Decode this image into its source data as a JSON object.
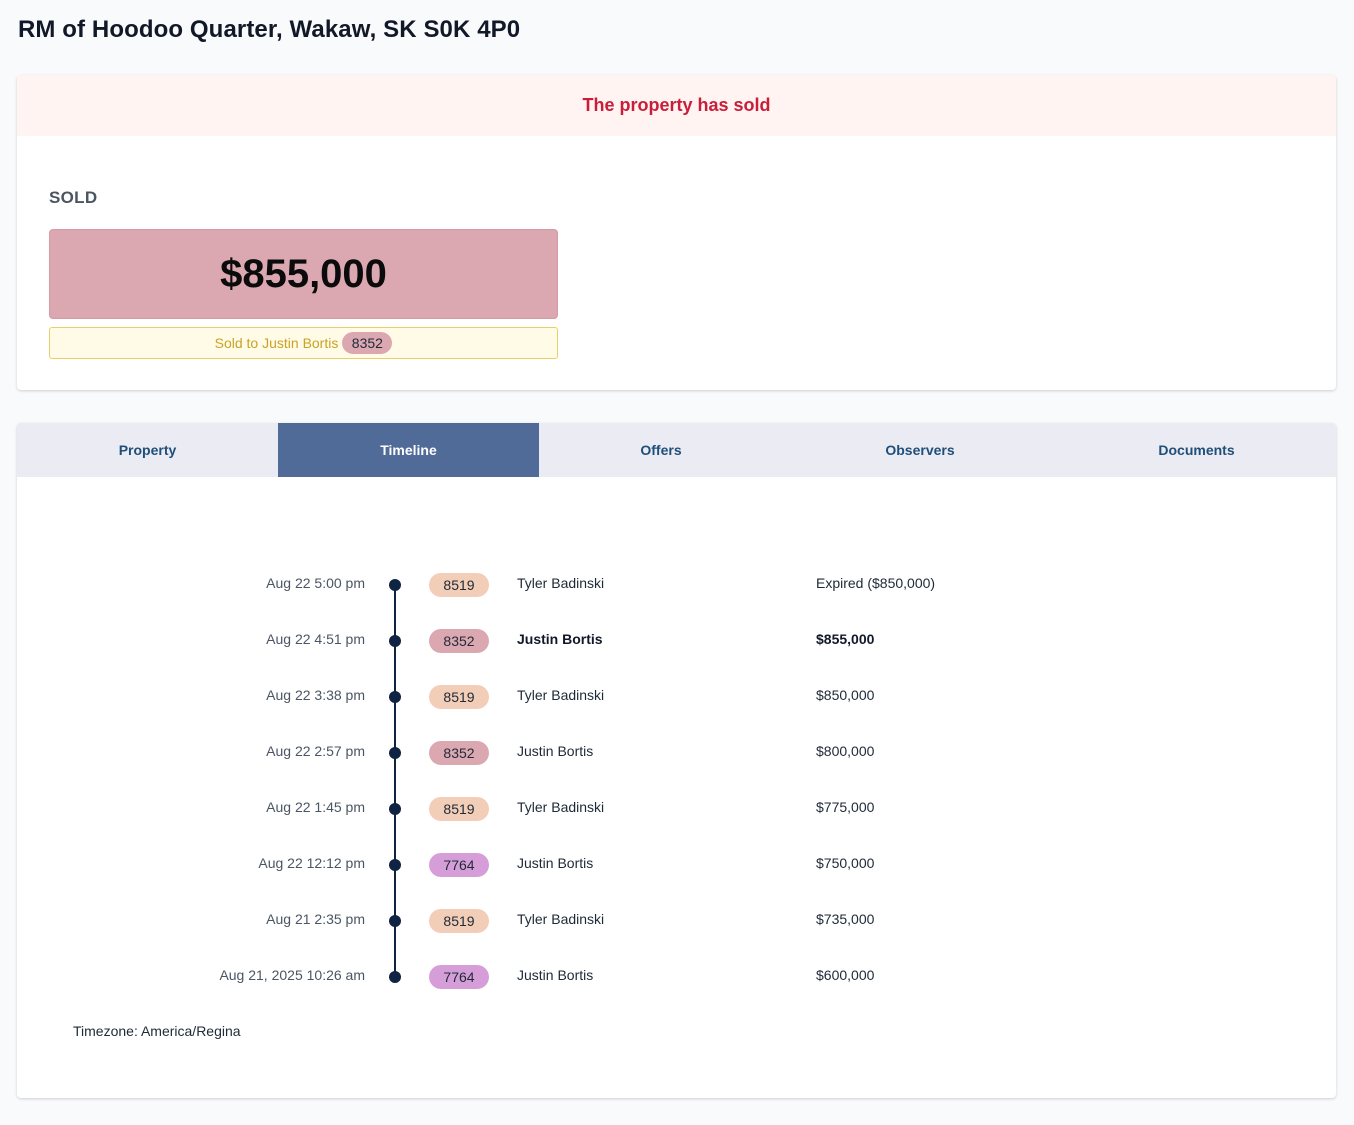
{
  "page": {
    "title": "RM of Hoodoo Quarter, Wakaw, SK S0K 4P0"
  },
  "sold_card": {
    "banner": "The property has sold",
    "status_label": "SOLD",
    "price": "$855,000",
    "sold_to_text": "Sold to Justin Bortis",
    "sold_to_badge": "8352"
  },
  "tabs": [
    {
      "label": "Property",
      "active": false
    },
    {
      "label": "Timeline",
      "active": true
    },
    {
      "label": "Offers",
      "active": false
    },
    {
      "label": "Observers",
      "active": false
    },
    {
      "label": "Documents",
      "active": false
    }
  ],
  "timeline": {
    "rows": [
      {
        "time": "Aug 22 5:00 pm",
        "badge": "8519",
        "name": "Tyler Badinski",
        "amount": "Expired ($850,000)"
      },
      {
        "time": "Aug 22 4:51 pm",
        "badge": "8352",
        "name": "Justin Bortis",
        "amount": "$855,000"
      },
      {
        "time": "Aug 22 3:38 pm",
        "badge": "8519",
        "name": "Tyler Badinski",
        "amount": "$850,000"
      },
      {
        "time": "Aug 22 2:57 pm",
        "badge": "8352",
        "name": "Justin Bortis",
        "amount": "$800,000"
      },
      {
        "time": "Aug 22 1:45 pm",
        "badge": "8519",
        "name": "Tyler Badinski",
        "amount": "$775,000"
      },
      {
        "time": "Aug 22 12:12 pm",
        "badge": "7764",
        "name": "Justin Bortis",
        "amount": "$750,000"
      },
      {
        "time": "Aug 21 2:35 pm",
        "badge": "8519",
        "name": "Tyler Badinski",
        "amount": "$735,000"
      },
      {
        "time": "Aug 21, 2025 10:26 am",
        "badge": "7764",
        "name": "Justin Bortis",
        "amount": "$600,000"
      }
    ],
    "timezone": "Timezone: America/Regina"
  },
  "colors": {
    "banner_bg": "#fff4f2",
    "banner_text": "#c81e3a",
    "price_box": "#dba8b1",
    "badge_8519": "#f2cdb7",
    "badge_8352": "#dba8b1",
    "badge_7764": "#d69ed9",
    "tab_active": "#506b98",
    "timeline_line": "#0f2442"
  }
}
